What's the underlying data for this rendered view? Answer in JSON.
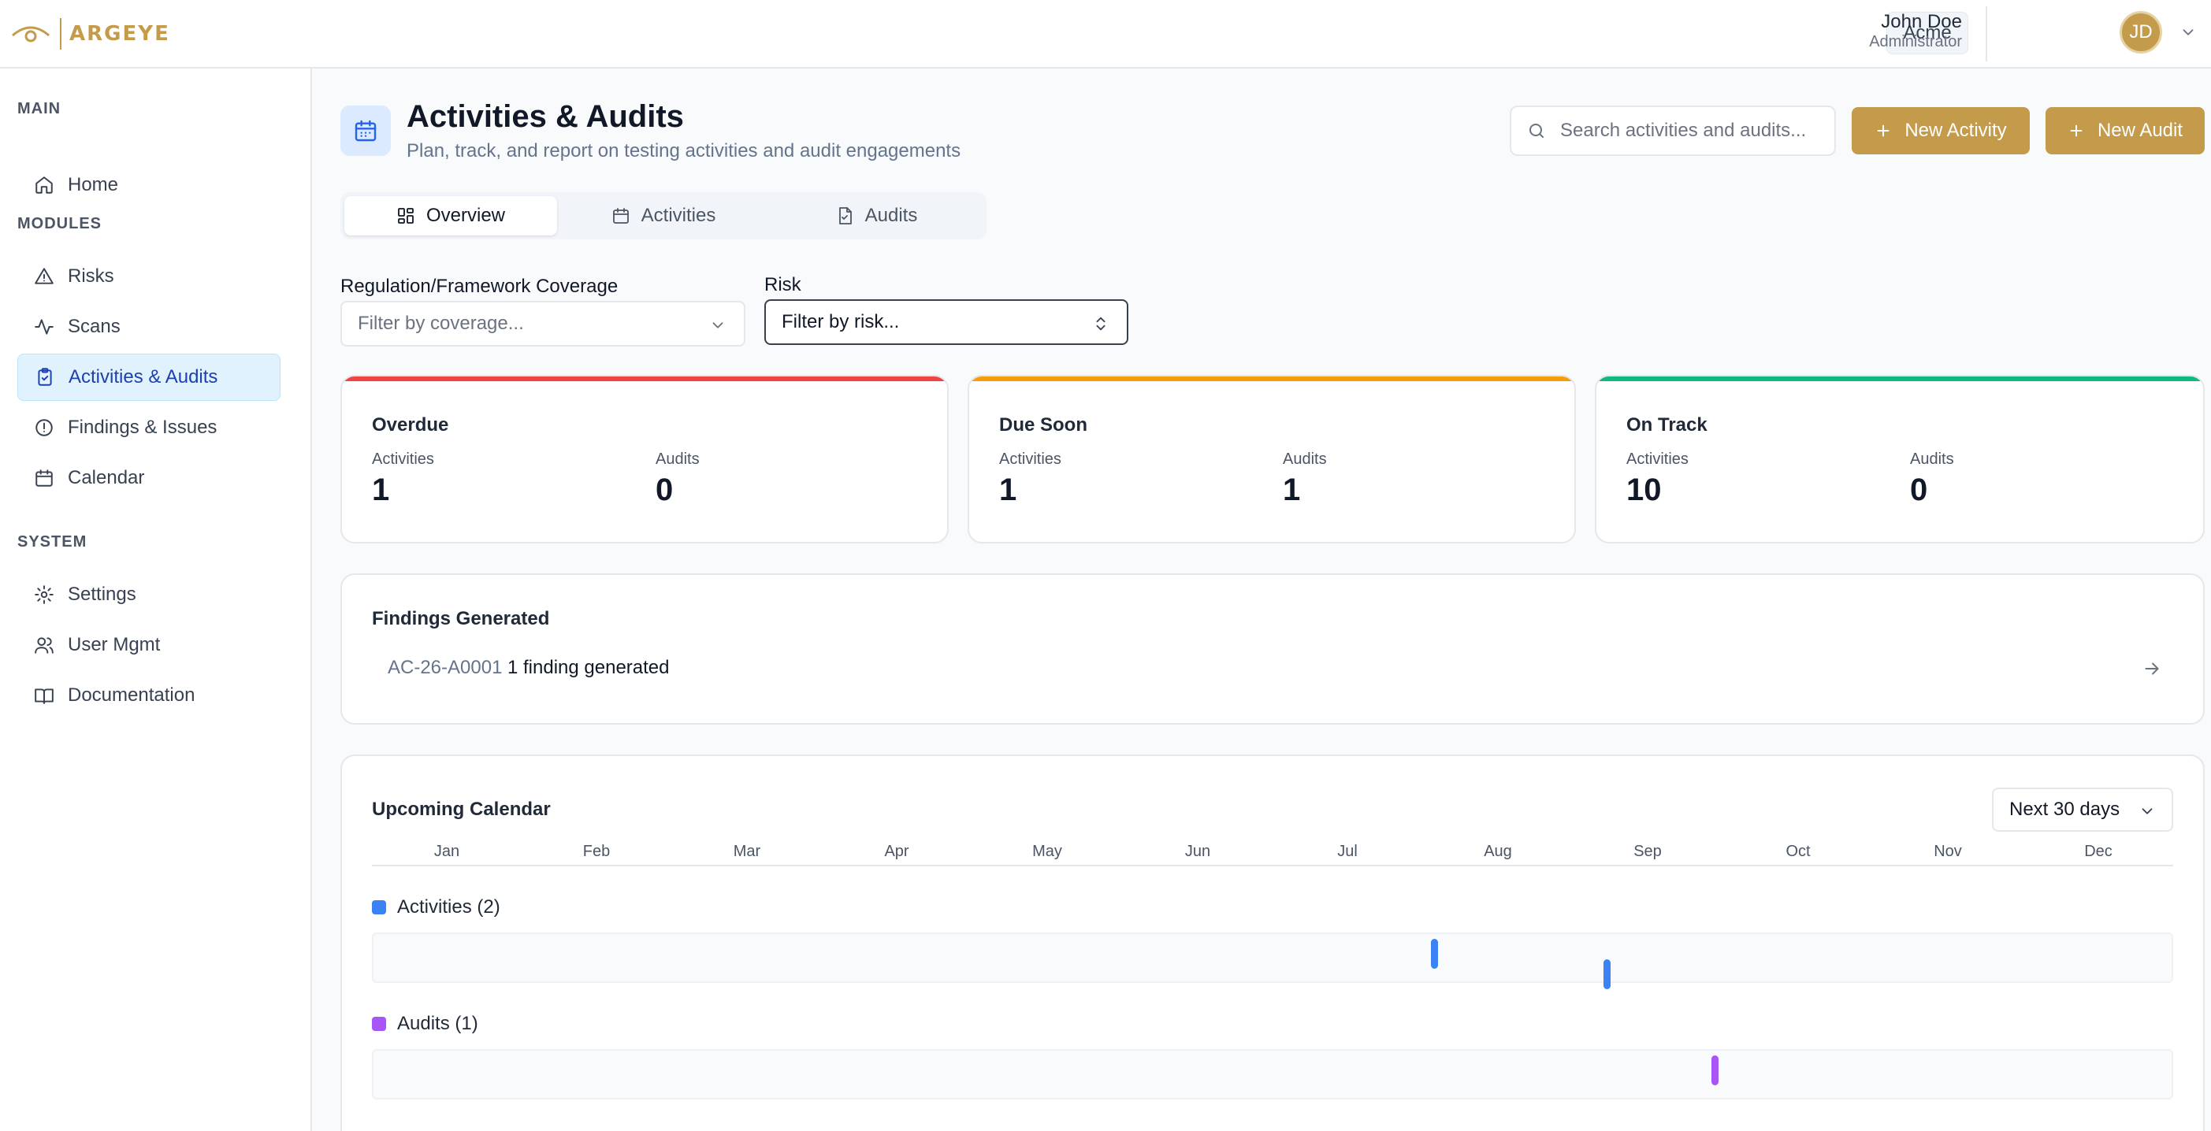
{
  "app": {
    "logo_text": "ARGEYE",
    "org": "Acme",
    "user": {
      "name": "John Doe",
      "role": "Administrator",
      "initials": "JD"
    }
  },
  "sidebar": {
    "sections": [
      {
        "label": "MAIN",
        "items": [
          {
            "label": "Home",
            "icon": "home-icon"
          }
        ]
      },
      {
        "label": "MODULES",
        "items": [
          {
            "label": "Risks",
            "icon": "alert-triangle-icon"
          },
          {
            "label": "Scans",
            "icon": "activity-icon"
          },
          {
            "label": "Activities & Audits",
            "icon": "clipboard-check-icon",
            "active": true
          },
          {
            "label": "Findings & Issues",
            "icon": "alert-circle-icon"
          },
          {
            "label": "Calendar",
            "icon": "calendar-icon"
          }
        ]
      },
      {
        "label": "SYSTEM",
        "items": [
          {
            "label": "Settings",
            "icon": "gear-icon"
          },
          {
            "label": "User Mgmt",
            "icon": "users-icon"
          },
          {
            "label": "Documentation",
            "icon": "book-icon"
          }
        ]
      }
    ]
  },
  "header": {
    "title": "Activities & Audits",
    "subtitle": "Plan, track, and report on testing activities and audit engagements",
    "search_placeholder": "Search activities and audits...",
    "new_activity": "New Activity",
    "new_audit": "New Audit"
  },
  "tabs": [
    {
      "label": "Overview",
      "icon": "layout-grid-icon",
      "active": true
    },
    {
      "label": "Activities",
      "icon": "calendar-icon"
    },
    {
      "label": "Audits",
      "icon": "file-check-icon"
    }
  ],
  "filters": {
    "coverage": {
      "label": "Regulation/Framework Coverage",
      "placeholder": "Filter by coverage..."
    },
    "risk": {
      "label": "Risk",
      "placeholder": "Filter by risk..."
    }
  },
  "stats": [
    {
      "title": "Overdue",
      "activities_label": "Activities",
      "activities": "1",
      "audits_label": "Audits",
      "audits": "0",
      "color": "#ef4444"
    },
    {
      "title": "Due Soon",
      "activities_label": "Activities",
      "activities": "1",
      "audits_label": "Audits",
      "audits": "1",
      "color": "#f59e0b"
    },
    {
      "title": "On Track",
      "activities_label": "Activities",
      "activities": "10",
      "audits_label": "Audits",
      "audits": "0",
      "color": "#10b981"
    }
  ],
  "findings": {
    "title": "Findings Generated",
    "items": [
      {
        "id": "AC-26-A0001",
        "text": "1 finding generated"
      }
    ]
  },
  "calendar": {
    "title": "Upcoming Calendar",
    "range": "Next 30 days",
    "months": [
      "Jan",
      "Feb",
      "Mar",
      "Apr",
      "May",
      "Jun",
      "Jul",
      "Aug",
      "Sep",
      "Oct",
      "Nov",
      "Dec"
    ],
    "activities_label": "Activities (2)",
    "audits_label": "Audits (1)",
    "activity_color": "#3b82f6",
    "audit_color": "#a855f7"
  }
}
